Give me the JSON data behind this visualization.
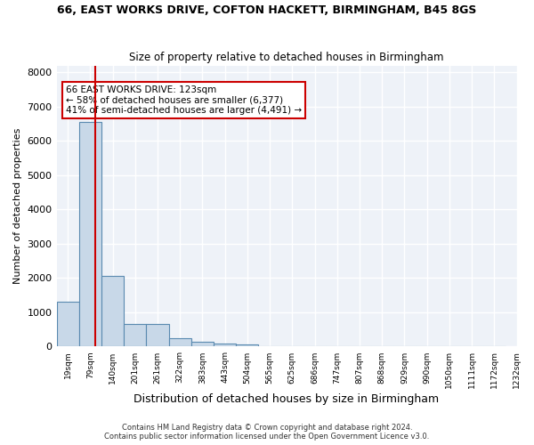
{
  "title": "66, EAST WORKS DRIVE, COFTON HACKETT, BIRMINGHAM, B45 8GS",
  "subtitle": "Size of property relative to detached houses in Birmingham",
  "xlabel": "Distribution of detached houses by size in Birmingham",
  "ylabel": "Number of detached properties",
  "bar_color": "#c8d8e8",
  "bar_edge_color": "#5a8ab0",
  "background_color": "#eef2f8",
  "grid_color": "#ffffff",
  "annotation_box_color": "#cc0000",
  "property_line_color": "#cc0000",
  "annotation_line1": "66 EAST WORKS DRIVE: 123sqm",
  "annotation_line2": "← 58% of detached houses are smaller (6,377)",
  "annotation_line3": "41% of semi-detached houses are larger (4,491) →",
  "footer_line1": "Contains HM Land Registry data © Crown copyright and database right 2024.",
  "footer_line2": "Contains public sector information licensed under the Open Government Licence v3.0.",
  "property_size_sqm": 123,
  "bin_edges": [
    19,
    79,
    140,
    201,
    261,
    322,
    383,
    443,
    504,
    565,
    625,
    686,
    747,
    807,
    868,
    929,
    990,
    1050,
    1111,
    1172,
    1232
  ],
  "bin_counts": [
    1300,
    6550,
    2070,
    650,
    650,
    250,
    130,
    100,
    60,
    0,
    0,
    0,
    0,
    0,
    0,
    0,
    0,
    0,
    0,
    0
  ],
  "tick_labels": [
    "19sqm",
    "79sqm",
    "140sqm",
    "201sqm",
    "261sqm",
    "322sqm",
    "383sqm",
    "443sqm",
    "504sqm",
    "565sqm",
    "625sqm",
    "686sqm",
    "747sqm",
    "807sqm",
    "868sqm",
    "929sqm",
    "990sqm",
    "1050sqm",
    "1111sqm",
    "1172sqm",
    "1232sqm"
  ],
  "ylim": [
    0,
    8200
  ],
  "yticks": [
    0,
    1000,
    2000,
    3000,
    4000,
    5000,
    6000,
    7000,
    8000
  ]
}
